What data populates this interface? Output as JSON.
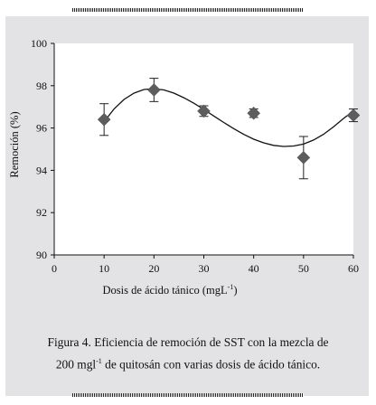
{
  "chart_data": {
    "type": "scatter",
    "xlabel": "Dosis de ácido tánico (mgL",
    "xlabel_sup": "-1",
    "xlabel_end": ")",
    "ylabel": "Remoción (%)",
    "xlim": [
      0,
      60
    ],
    "ylim": [
      90,
      100
    ],
    "xticks": [
      "0",
      "10",
      "20",
      "30",
      "40",
      "50",
      "60"
    ],
    "yticks": [
      "90",
      "92",
      "94",
      "96",
      "98",
      "100"
    ],
    "grid": false,
    "series": [
      {
        "x": [
          10,
          20,
          30,
          40,
          50,
          60
        ],
        "y": [
          96.4,
          97.8,
          96.8,
          96.7,
          94.6,
          96.6
        ],
        "err": [
          0.75,
          0.55,
          0.25,
          0.2,
          1.0,
          0.3
        ],
        "marker": "diamond",
        "color": "#5d5d5d"
      }
    ],
    "trend_line": {
      "type": "polynomial",
      "x": [
        10,
        12,
        14,
        16,
        18,
        20,
        22,
        24,
        26,
        28,
        30,
        32,
        34,
        36,
        38,
        40,
        42,
        44,
        46,
        48,
        50,
        52,
        54,
        56,
        58,
        60
      ],
      "y": [
        96.3,
        96.9,
        97.35,
        97.65,
        97.82,
        97.86,
        97.8,
        97.65,
        97.43,
        97.17,
        96.88,
        96.57,
        96.26,
        95.97,
        95.7,
        95.47,
        95.3,
        95.18,
        95.13,
        95.15,
        95.24,
        95.43,
        95.7,
        96.05,
        96.45,
        96.8
      ],
      "color": "#111111"
    }
  },
  "caption": {
    "line1": "Figura 4. Eficiencia de remoción de SST con la mezcla de",
    "line2_pre": "200 mgl",
    "line2_sup": "-1",
    "line2_post": " de quitosán con varias dosis de ácido tánico."
  },
  "colors": {
    "panel_background": "#e3e2e4",
    "plot_background": "#ffffff",
    "marker": "#5d5d5d"
  }
}
